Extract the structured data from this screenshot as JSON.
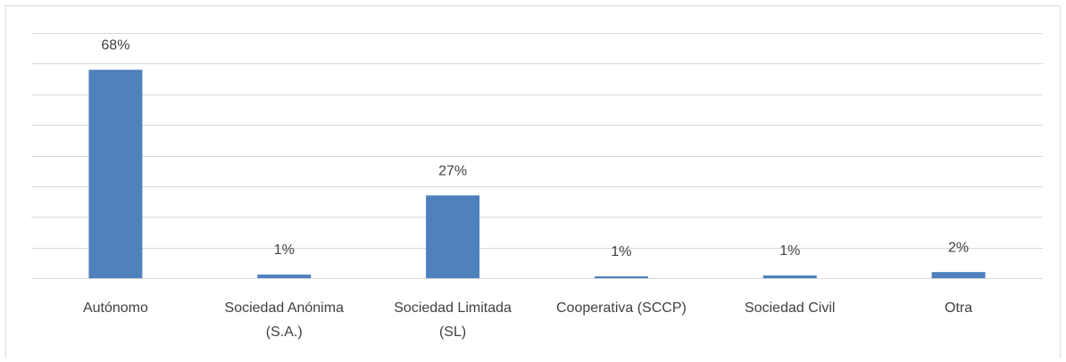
{
  "chart_data": {
    "type": "bar",
    "categories": [
      [
        "Autónomo"
      ],
      [
        "Sociedad Anónima",
        "(S.A.)"
      ],
      [
        "Sociedad Limitada",
        "(SL)"
      ],
      [
        "Cooperativa (SCCP)"
      ],
      [
        "Sociedad Civil"
      ],
      [
        "Otra"
      ]
    ],
    "values": [
      68,
      1.2,
      27,
      0.6,
      0.9,
      2
    ],
    "value_labels": [
      "68%",
      "1%",
      "27%",
      "1%",
      "1%",
      "2%"
    ],
    "color": "#4f81bd",
    "ylim": [
      0,
      80
    ],
    "yticks": [
      0,
      10,
      20,
      30,
      40,
      50,
      60,
      70,
      80
    ],
    "grid": true
  }
}
